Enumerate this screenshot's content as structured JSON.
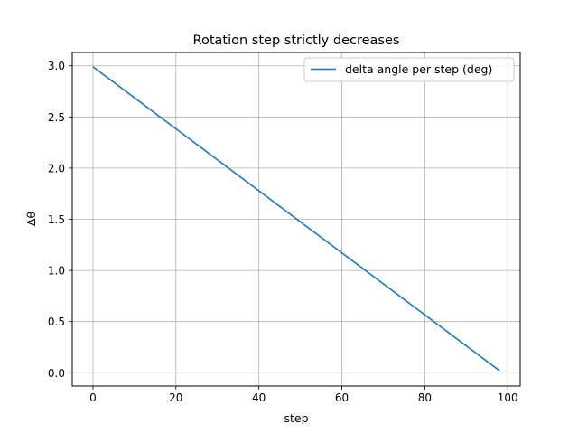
{
  "chart_data": {
    "type": "line",
    "title": "Rotation step strictly decreases",
    "xlabel": "step",
    "ylabel": "Δθ",
    "xlim": [
      -5,
      103
    ],
    "ylim": [
      -0.13,
      3.13
    ],
    "xticks": [
      0,
      20,
      40,
      60,
      80,
      100
    ],
    "xtick_labels": [
      "0",
      "20",
      "40",
      "60",
      "80",
      "100"
    ],
    "yticks": [
      0.0,
      0.5,
      1.0,
      1.5,
      2.0,
      2.5,
      3.0
    ],
    "ytick_labels": [
      "0.0",
      "0.5",
      "1.0",
      "1.5",
      "2.0",
      "2.5",
      "3.0"
    ],
    "grid": true,
    "legend_position": "upper right",
    "series": [
      {
        "name": "delta angle per step (deg)",
        "color": "#1f77b4",
        "x": [
          0,
          98
        ],
        "y": [
          2.99,
          0.02
        ]
      }
    ]
  }
}
